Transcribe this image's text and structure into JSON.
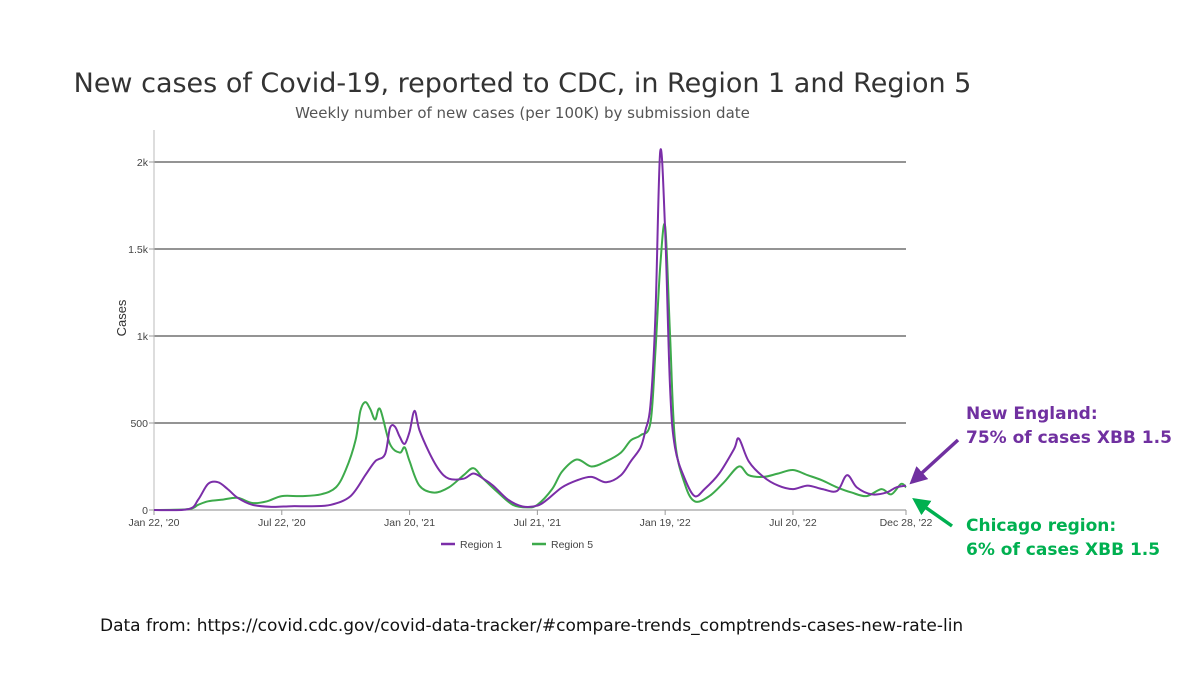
{
  "title": "New cases of Covid-19, reported to CDC, in Region 1 and Region 5",
  "subtitle": "Weekly number of new cases (per 100K) by submission date",
  "annotations": {
    "new_england": {
      "line1": "New England:",
      "line2": "75% of cases XBB 1.5",
      "color": "#7030a0"
    },
    "chicago": {
      "line1": "Chicago region:",
      "line2": "6% of cases XBB 1.5",
      "color": "#00b050"
    }
  },
  "source": "Data from: https://covid.cdc.gov/covid-data-tracker/#compare-trends_comptrends-cases-new-rate-lin",
  "chart_data": {
    "type": "line",
    "ylabel": "Cases",
    "ylim": [
      0,
      2100
    ],
    "yticks": [
      0,
      500,
      1000,
      1500,
      2000
    ],
    "ytick_labels": [
      "0",
      "500",
      "1k",
      "1.5k",
      "2k"
    ],
    "xlim": [
      "2020-01-22",
      "2022-12-28"
    ],
    "xticks": [
      "2020-01-22",
      "2020-07-22",
      "2021-01-20",
      "2021-07-21",
      "2022-01-19",
      "2022-07-20",
      "2022-12-28"
    ],
    "xtick_labels": [
      "Jan 22, '20",
      "Jul 22, '20",
      "Jan 20, '21",
      "Jul 21, '21",
      "Jan 19, '22",
      "Jul 20, '22",
      "Dec 28, '22"
    ],
    "grid": true,
    "legend_position": "bottom",
    "series": [
      {
        "name": "Region 1",
        "color": "#7b2ea8",
        "points": [
          [
            "2020-01-22",
            0
          ],
          [
            "2020-03-11",
            5
          ],
          [
            "2020-03-25",
            60
          ],
          [
            "2020-04-08",
            150
          ],
          [
            "2020-04-22",
            160
          ],
          [
            "2020-05-06",
            120
          ],
          [
            "2020-05-20",
            70
          ],
          [
            "2020-06-10",
            30
          ],
          [
            "2020-07-08",
            18
          ],
          [
            "2020-08-05",
            22
          ],
          [
            "2020-09-02",
            22
          ],
          [
            "2020-09-30",
            30
          ],
          [
            "2020-10-28",
            80
          ],
          [
            "2020-11-18",
            200
          ],
          [
            "2020-12-02",
            280
          ],
          [
            "2020-12-16",
            320
          ],
          [
            "2020-12-23",
            470
          ],
          [
            "2020-12-30",
            480
          ],
          [
            "2021-01-06",
            420
          ],
          [
            "2021-01-13",
            380
          ],
          [
            "2021-01-20",
            450
          ],
          [
            "2021-01-27",
            570
          ],
          [
            "2021-02-03",
            460
          ],
          [
            "2021-02-17",
            330
          ],
          [
            "2021-03-03",
            230
          ],
          [
            "2021-03-17",
            180
          ],
          [
            "2021-04-07",
            180
          ],
          [
            "2021-04-21",
            210
          ],
          [
            "2021-05-05",
            180
          ],
          [
            "2021-05-19",
            140
          ],
          [
            "2021-06-09",
            60
          ],
          [
            "2021-06-30",
            20
          ],
          [
            "2021-07-21",
            25
          ],
          [
            "2021-08-04",
            60
          ],
          [
            "2021-08-25",
            130
          ],
          [
            "2021-09-15",
            170
          ],
          [
            "2021-10-06",
            190
          ],
          [
            "2021-10-27",
            160
          ],
          [
            "2021-11-17",
            200
          ],
          [
            "2021-12-01",
            280
          ],
          [
            "2021-12-15",
            360
          ],
          [
            "2021-12-22",
            460
          ],
          [
            "2021-12-29",
            600
          ],
          [
            "2022-01-05",
            1100
          ],
          [
            "2022-01-12",
            2060
          ],
          [
            "2022-01-19",
            1600
          ],
          [
            "2022-01-26",
            700
          ],
          [
            "2022-02-02",
            360
          ],
          [
            "2022-02-16",
            180
          ],
          [
            "2022-03-02",
            80
          ],
          [
            "2022-03-16",
            120
          ],
          [
            "2022-04-06",
            210
          ],
          [
            "2022-04-27",
            350
          ],
          [
            "2022-05-04",
            410
          ],
          [
            "2022-05-18",
            280
          ],
          [
            "2022-06-08",
            190
          ],
          [
            "2022-06-29",
            140
          ],
          [
            "2022-07-20",
            120
          ],
          [
            "2022-08-10",
            140
          ],
          [
            "2022-08-31",
            120
          ],
          [
            "2022-09-21",
            110
          ],
          [
            "2022-10-05",
            200
          ],
          [
            "2022-10-19",
            130
          ],
          [
            "2022-11-09",
            90
          ],
          [
            "2022-11-30",
            100
          ],
          [
            "2022-12-14",
            130
          ],
          [
            "2022-12-28",
            140
          ]
        ]
      },
      {
        "name": "Region 5",
        "color": "#3daa4b",
        "points": [
          [
            "2020-01-22",
            0
          ],
          [
            "2020-03-11",
            5
          ],
          [
            "2020-03-25",
            30
          ],
          [
            "2020-04-08",
            50
          ],
          [
            "2020-04-29",
            60
          ],
          [
            "2020-05-20",
            70
          ],
          [
            "2020-06-10",
            40
          ],
          [
            "2020-07-01",
            50
          ],
          [
            "2020-07-22",
            80
          ],
          [
            "2020-08-19",
            80
          ],
          [
            "2020-09-16",
            90
          ],
          [
            "2020-10-07",
            130
          ],
          [
            "2020-10-21",
            230
          ],
          [
            "2020-11-04",
            400
          ],
          [
            "2020-11-11",
            570
          ],
          [
            "2020-11-18",
            620
          ],
          [
            "2020-11-25",
            580
          ],
          [
            "2020-12-02",
            520
          ],
          [
            "2020-12-09",
            580
          ],
          [
            "2020-12-23",
            380
          ],
          [
            "2021-01-06",
            330
          ],
          [
            "2021-01-13",
            360
          ],
          [
            "2021-01-20",
            280
          ],
          [
            "2021-02-03",
            140
          ],
          [
            "2021-02-24",
            100
          ],
          [
            "2021-03-17",
            130
          ],
          [
            "2021-04-07",
            200
          ],
          [
            "2021-04-21",
            240
          ],
          [
            "2021-05-05",
            180
          ],
          [
            "2021-05-26",
            100
          ],
          [
            "2021-06-16",
            30
          ],
          [
            "2021-07-07",
            15
          ],
          [
            "2021-07-21",
            30
          ],
          [
            "2021-08-11",
            120
          ],
          [
            "2021-08-25",
            220
          ],
          [
            "2021-09-15",
            290
          ],
          [
            "2021-10-06",
            250
          ],
          [
            "2021-10-27",
            280
          ],
          [
            "2021-11-17",
            330
          ],
          [
            "2021-12-01",
            400
          ],
          [
            "2021-12-15",
            430
          ],
          [
            "2021-12-29",
            500
          ],
          [
            "2022-01-05",
            900
          ],
          [
            "2022-01-12",
            1400
          ],
          [
            "2022-01-19",
            1630
          ],
          [
            "2022-01-26",
            1000
          ],
          [
            "2022-02-02",
            400
          ],
          [
            "2022-02-16",
            150
          ],
          [
            "2022-03-02",
            50
          ],
          [
            "2022-03-23",
            80
          ],
          [
            "2022-04-13",
            160
          ],
          [
            "2022-05-04",
            250
          ],
          [
            "2022-05-18",
            200
          ],
          [
            "2022-06-08",
            190
          ],
          [
            "2022-06-29",
            210
          ],
          [
            "2022-07-20",
            230
          ],
          [
            "2022-08-10",
            200
          ],
          [
            "2022-08-31",
            170
          ],
          [
            "2022-09-21",
            130
          ],
          [
            "2022-10-12",
            100
          ],
          [
            "2022-11-02",
            80
          ],
          [
            "2022-11-23",
            120
          ],
          [
            "2022-12-07",
            90
          ],
          [
            "2022-12-21",
            150
          ],
          [
            "2022-12-28",
            130
          ]
        ]
      }
    ]
  }
}
